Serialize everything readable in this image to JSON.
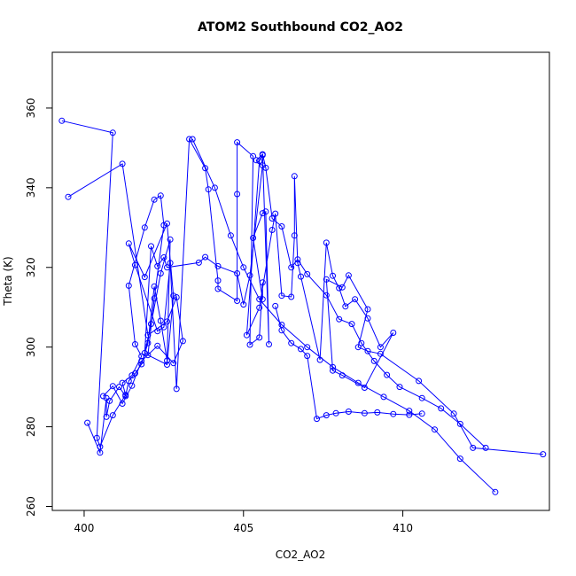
{
  "chart_data": {
    "type": "line",
    "title": "ATOM2 Southbound CO2_AO2",
    "xlabel": "CO2_AO2",
    "ylabel": "Theta (K)",
    "xlim": [
      399.0,
      414.6
    ],
    "ylim": [
      259.0,
      374.0
    ],
    "x_ticks": [
      400,
      405,
      410
    ],
    "y_ticks": [
      260,
      280,
      300,
      320,
      340,
      360
    ],
    "grid": false,
    "legend": "none",
    "markers": "open-circle",
    "color": "#0000ff",
    "series": [
      {
        "x": [
          399.3,
          400.9,
          400.4,
          400.5,
          400.9,
          401.3,
          401.2,
          401.5,
          401.8,
          401.6,
          401.4,
          401.9,
          402.2,
          402.4,
          402.5,
          402.2,
          402.0,
          402.6,
          402.8,
          402.6,
          401.9,
          401.4,
          401.6,
          402.3,
          402.5,
          402.7,
          402.9,
          403.3,
          403.8,
          403.9,
          404.2,
          404.2,
          404.8,
          404.8,
          404.8,
          405.3,
          405.2,
          405.5,
          405.6,
          405.6,
          405.3,
          405.6,
          405.7,
          405.8,
          405.6,
          405.5,
          405.1,
          405.5,
          405.9,
          406.0,
          406.2,
          406.5,
          406.6,
          406.6,
          406.7,
          406.8,
          407.4,
          407.6,
          407.8,
          408.0,
          408.2,
          408.5,
          408.9,
          409.3,
          409.7,
          408.8,
          408.1,
          407.8,
          407.6,
          408.1,
          408.3,
          408.9,
          408.6,
          408.9,
          409.3,
          410.5,
          411.6,
          412.2,
          414.4
        ],
        "y": [
          356.8,
          353.8,
          277.2,
          275.0,
          282.9,
          288.0,
          291.0,
          292.9,
          297.7,
          300.7,
          315.4,
          330.0,
          337.0,
          338.0,
          330.6,
          312.2,
          298.0,
          295.6,
          312.9,
          331.0,
          317.6,
          326.0,
          320.6,
          304.0,
          305.0,
          321.1,
          289.5,
          352.2,
          344.9,
          339.6,
          316.7,
          314.6,
          311.6,
          338.4,
          351.4,
          347.9,
          300.6,
          302.4,
          316.2,
          312.0,
          327.4,
          333.6,
          334.0,
          300.7,
          348.2,
          346.7,
          303.0,
          309.9,
          329.4,
          333.5,
          312.9,
          312.6,
          328.0,
          342.9,
          321.1,
          317.7,
          296.8,
          326.2,
          317.9,
          314.8,
          310.2,
          312.0,
          307.2,
          300.0,
          303.6,
          289.8,
          292.9,
          294.1,
          317.0,
          315.0,
          318.0,
          309.5,
          300.0,
          299.0,
          298.3,
          291.5,
          283.3,
          274.7,
          273.1
        ]
      },
      {
        "x": [
          400.1,
          400.5,
          400.7,
          400.7,
          400.8,
          401.1,
          401.3,
          401.4,
          401.6,
          401.8,
          402.0,
          402.2,
          402.4,
          402.6,
          402.7,
          402.4,
          402.1,
          401.9,
          402.1,
          402.3,
          402.5,
          402.6,
          403.6,
          403.8,
          404.2,
          404.8,
          405.0,
          405.2,
          405.6,
          405.4,
          405.6,
          405.7,
          405.9,
          406.2,
          406.5,
          406.7,
          407.0,
          407.6,
          408.0,
          408.4,
          408.7,
          409.1,
          409.5,
          409.9,
          410.6,
          411.2,
          411.8,
          412.6
        ],
        "y": [
          281.0,
          273.5,
          287.2,
          282.5,
          286.5,
          290.0,
          287.7,
          291.5,
          293.4,
          295.7,
          301.0,
          315.2,
          306.6,
          296.6,
          327.0,
          318.5,
          305.8,
          298.5,
          325.3,
          320.3,
          322.5,
          320.0,
          321.2,
          322.6,
          320.3,
          318.5,
          310.7,
          318.0,
          345.6,
          346.9,
          348.4,
          345.0,
          332.3,
          330.3,
          320.0,
          322.0,
          318.3,
          313.0,
          307.0,
          305.8,
          301.0,
          296.5,
          293.0,
          290.0,
          287.2,
          284.6,
          280.7,
          274.7
        ]
      },
      {
        "x": [
          399.5,
          401.2,
          402.0,
          402.6,
          402.9,
          403.1,
          402.8,
          402.3,
          401.8,
          401.5,
          401.2,
          400.9,
          400.6
        ],
        "y": [
          337.7,
          346.0,
          303.0,
          306.4,
          312.5,
          301.5,
          296.0,
          300.3,
          296.5,
          290.3,
          285.8,
          290.2,
          287.7
        ]
      },
      {
        "x": [
          406.0,
          406.2,
          406.5,
          406.8,
          407.0,
          407.3,
          407.6,
          407.9,
          408.3,
          408.8,
          409.2,
          409.7,
          410.2,
          410.6
        ],
        "y": [
          310.3,
          304.2,
          301.0,
          299.5,
          297.8,
          282.0,
          282.9,
          283.4,
          283.8,
          283.4,
          283.6,
          283.2,
          283.0,
          283.3
        ]
      },
      {
        "x": [
          403.4,
          404.1,
          404.6,
          405.0,
          405.5,
          406.2,
          407.0,
          407.8,
          408.6,
          409.4,
          410.2,
          411.0,
          411.8,
          412.9
        ],
        "y": [
          352.2,
          340.0,
          328.0,
          320.0,
          312.0,
          305.6,
          300.0,
          295.0,
          291.0,
          287.5,
          284.0,
          279.3,
          272.0,
          263.6
        ]
      }
    ]
  }
}
